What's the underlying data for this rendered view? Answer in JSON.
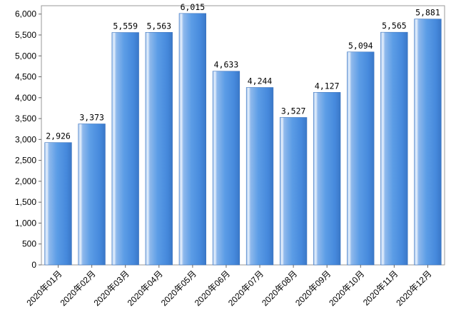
{
  "chart_data": {
    "type": "bar",
    "title": "",
    "xlabel": "",
    "ylabel": "",
    "categories": [
      "2020年01月",
      "2020年02月",
      "2020年03月",
      "2020年04月",
      "2020年05月",
      "2020年06月",
      "2020年07月",
      "2020年08月",
      "2020年09月",
      "2020年10月",
      "2020年11月",
      "2020年12月"
    ],
    "values": [
      2926,
      3373,
      5559,
      5563,
      6015,
      4633,
      4244,
      3527,
      4127,
      5094,
      5565,
      5881
    ],
    "value_labels": [
      "2,926",
      "3,373",
      "5,559",
      "5,563",
      "6,015",
      "4,633",
      "4,244",
      "3,527",
      "4,127",
      "5,094",
      "5,565",
      "5,881"
    ],
    "ylim": [
      0,
      6200
    ],
    "yticks": [
      0,
      500,
      1000,
      1500,
      2000,
      2500,
      3000,
      3500,
      4000,
      4500,
      5000,
      5500,
      6000
    ],
    "ytick_labels": [
      "0",
      "500",
      "1,000",
      "1,500",
      "2,000",
      "2,500",
      "3,000",
      "3,500",
      "4,000",
      "4,500",
      "5,000",
      "5,500",
      "6,000"
    ],
    "grid": false,
    "legend": "none",
    "bar_color": "#4a90e2"
  }
}
